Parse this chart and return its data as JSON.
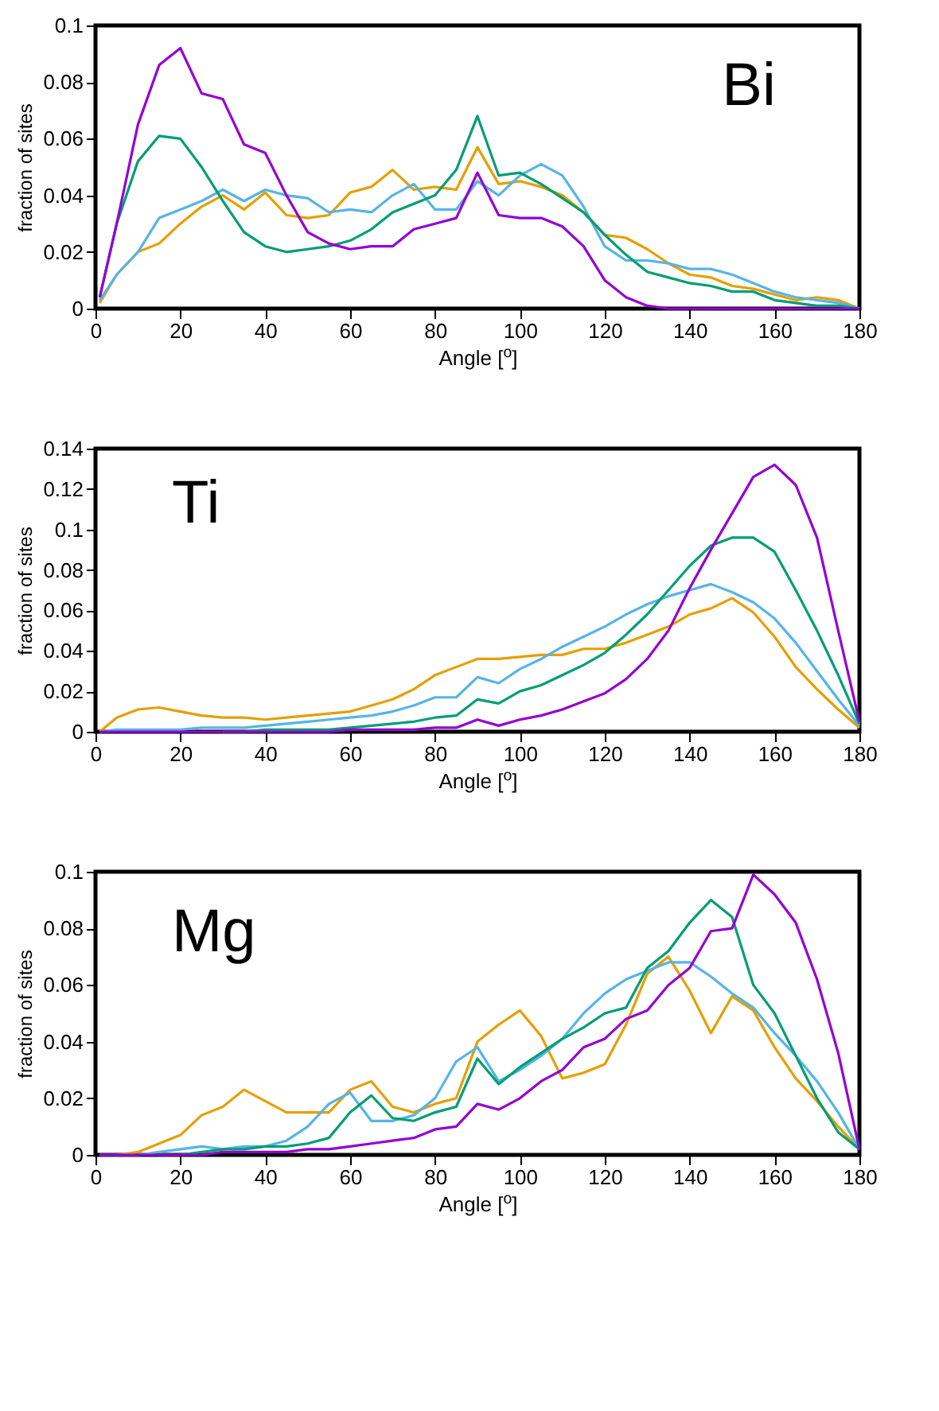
{
  "chart_data": [
    {
      "type": "line",
      "xlabel": "Angle [$^{o}$]",
      "ylabel": "fraction of sites",
      "annotations": [
        "Bi"
      ],
      "x": [
        1,
        5,
        10,
        15,
        20,
        25,
        30,
        35,
        40,
        45,
        50,
        55,
        60,
        65,
        70,
        75,
        80,
        85,
        90,
        95,
        100,
        105,
        110,
        115,
        120,
        125,
        130,
        135,
        140,
        145,
        150,
        155,
        160,
        165,
        170,
        175,
        180
      ],
      "xlim": [
        0,
        180
      ],
      "xticks": [
        0,
        20,
        40,
        60,
        80,
        100,
        120,
        140,
        160,
        180
      ],
      "ylim": [
        0,
        0.1
      ],
      "yticks": [
        0,
        0.02,
        0.04,
        0.06,
        0.08,
        0.1
      ],
      "grid": false,
      "legend": false,
      "series": [
        {
          "color": "#9400d3",
          "values": [
            0.004,
            0.03,
            0.065,
            0.086,
            0.092,
            0.076,
            0.074,
            0.058,
            0.055,
            0.04,
            0.027,
            0.023,
            0.021,
            0.022,
            0.022,
            0.028,
            0.03,
            0.032,
            0.048,
            0.033,
            0.032,
            0.032,
            0.029,
            0.022,
            0.01,
            0.004,
            0.001,
            0,
            0,
            0,
            0,
            0,
            0,
            0,
            0,
            0,
            0
          ]
        },
        {
          "color": "#009e73",
          "values": [
            0.004,
            0.03,
            0.052,
            0.061,
            0.06,
            0.05,
            0.038,
            0.027,
            0.022,
            0.02,
            0.021,
            0.022,
            0.024,
            0.028,
            0.034,
            0.037,
            0.04,
            0.049,
            0.068,
            0.047,
            0.048,
            0.044,
            0.039,
            0.034,
            0.026,
            0.019,
            0.013,
            0.011,
            0.009,
            0.008,
            0.006,
            0.006,
            0.003,
            0.002,
            0.001,
            0.001,
            0
          ]
        },
        {
          "color": "#56b4e9",
          "values": [
            0.003,
            0.012,
            0.02,
            0.032,
            0.035,
            0.038,
            0.042,
            0.038,
            0.042,
            0.04,
            0.039,
            0.034,
            0.035,
            0.034,
            0.04,
            0.044,
            0.035,
            0.035,
            0.045,
            0.04,
            0.047,
            0.051,
            0.047,
            0.036,
            0.022,
            0.017,
            0.017,
            0.016,
            0.014,
            0.014,
            0.012,
            0.009,
            0.006,
            0.004,
            0.003,
            0.002,
            0
          ]
        },
        {
          "color": "#e69f00",
          "values": [
            0.002,
            0.012,
            0.02,
            0.023,
            0.03,
            0.036,
            0.04,
            0.035,
            0.041,
            0.033,
            0.032,
            0.033,
            0.041,
            0.043,
            0.049,
            0.042,
            0.043,
            0.042,
            0.057,
            0.044,
            0.045,
            0.043,
            0.04,
            0.034,
            0.026,
            0.025,
            0.021,
            0.016,
            0.012,
            0.011,
            0.008,
            0.007,
            0.005,
            0.003,
            0.004,
            0.003,
            0
          ]
        }
      ]
    },
    {
      "type": "line",
      "xlabel": "Angle [$^{o}$]",
      "ylabel": "fraction of sites",
      "annotations": [
        "Ti"
      ],
      "x": [
        1,
        5,
        10,
        15,
        20,
        25,
        30,
        35,
        40,
        45,
        50,
        55,
        60,
        65,
        70,
        75,
        80,
        85,
        90,
        95,
        100,
        105,
        110,
        115,
        120,
        125,
        130,
        135,
        140,
        145,
        150,
        155,
        160,
        165,
        170,
        175,
        180
      ],
      "xlim": [
        0,
        180
      ],
      "xticks": [
        0,
        20,
        40,
        60,
        80,
        100,
        120,
        140,
        160,
        180
      ],
      "ylim": [
        0,
        0.14
      ],
      "yticks": [
        0,
        0.02,
        0.04,
        0.06,
        0.08,
        0.1,
        0.12,
        0.14
      ],
      "grid": false,
      "legend": false,
      "series": [
        {
          "color": "#9400d3",
          "values": [
            0,
            0,
            0,
            0,
            0,
            0,
            0,
            0,
            0,
            0,
            0,
            0,
            0.001,
            0.001,
            0.001,
            0.001,
            0.002,
            0.002,
            0.006,
            0.003,
            0.006,
            0.008,
            0.011,
            0.015,
            0.019,
            0.026,
            0.036,
            0.05,
            0.071,
            0.09,
            0.108,
            0.126,
            0.132,
            0.122,
            0.096,
            0.05,
            0.005
          ]
        },
        {
          "color": "#009e73",
          "values": [
            null,
            null,
            null,
            null,
            null,
            null,
            0,
            0,
            0.001,
            0.001,
            0.001,
            0.001,
            0.002,
            0.003,
            0.004,
            0.005,
            0.007,
            0.008,
            0.016,
            0.014,
            0.02,
            0.023,
            0.028,
            0.033,
            0.039,
            0.048,
            0.058,
            0.07,
            0.082,
            0.092,
            0.096,
            0.096,
            0.089,
            0.07,
            0.05,
            0.028,
            0.004
          ]
        },
        {
          "color": "#56b4e9",
          "values": [
            0,
            0.001,
            0.001,
            0.001,
            0.001,
            0.002,
            0.002,
            0.002,
            0.003,
            0.004,
            0.005,
            0.006,
            0.007,
            0.008,
            0.01,
            0.013,
            0.017,
            0.017,
            0.027,
            0.024,
            0.031,
            0.036,
            0.042,
            0.047,
            0.052,
            0.058,
            0.063,
            0.067,
            0.07,
            0.073,
            0.069,
            0.064,
            0.056,
            0.044,
            0.03,
            0.016,
            0.003
          ]
        },
        {
          "color": "#e69f00",
          "values": [
            0,
            0.007,
            0.011,
            0.012,
            0.01,
            0.008,
            0.007,
            0.007,
            0.006,
            0.007,
            0.008,
            0.009,
            0.01,
            0.013,
            0.016,
            0.021,
            0.028,
            0.032,
            0.036,
            0.036,
            0.037,
            0.038,
            0.038,
            0.041,
            0.041,
            0.044,
            0.048,
            0.052,
            0.058,
            0.061,
            0.066,
            0.059,
            0.047,
            0.032,
            0.021,
            0.011,
            0.002
          ]
        }
      ]
    },
    {
      "type": "line",
      "xlabel": "Angle [$^{o}$]",
      "ylabel": "fraction of sites",
      "annotations": [
        "Mg"
      ],
      "x": [
        1,
        5,
        10,
        15,
        20,
        25,
        30,
        35,
        40,
        45,
        50,
        55,
        60,
        65,
        70,
        75,
        80,
        85,
        90,
        95,
        100,
        105,
        110,
        115,
        120,
        125,
        130,
        135,
        140,
        145,
        150,
        155,
        160,
        165,
        170,
        175,
        180
      ],
      "xlim": [
        0,
        180
      ],
      "xticks": [
        0,
        20,
        40,
        60,
        80,
        100,
        120,
        140,
        160,
        180
      ],
      "ylim": [
        0,
        0.1
      ],
      "yticks": [
        0,
        0.02,
        0.04,
        0.06,
        0.08,
        0.1
      ],
      "grid": false,
      "legend": false,
      "series": [
        {
          "color": "#9400d3",
          "values": [
            0,
            0,
            0,
            0,
            0,
            0,
            0.001,
            0.001,
            0.001,
            0.001,
            0.002,
            0.002,
            0.003,
            0.004,
            0.005,
            0.006,
            0.009,
            0.01,
            0.018,
            0.016,
            0.02,
            0.026,
            0.03,
            0.038,
            0.041,
            0.048,
            0.051,
            0.06,
            0.066,
            0.079,
            0.08,
            0.099,
            0.092,
            0.082,
            0.062,
            0.036,
            0.002
          ]
        },
        {
          "color": "#009e73",
          "values": [
            null,
            null,
            null,
            0,
            0,
            0.001,
            0.002,
            0.002,
            0.003,
            0.003,
            0.004,
            0.006,
            0.015,
            0.021,
            0.013,
            0.012,
            0.015,
            0.017,
            0.034,
            0.025,
            0.031,
            0.036,
            0.041,
            0.045,
            0.05,
            0.052,
            0.066,
            0.072,
            0.082,
            0.09,
            0.084,
            0.06,
            0.05,
            0.035,
            0.02,
            0.008,
            0.002
          ]
        },
        {
          "color": "#56b4e9",
          "values": [
            0,
            0,
            0,
            0.001,
            0.002,
            0.003,
            0.002,
            0.003,
            0.003,
            0.005,
            0.01,
            0.018,
            0.022,
            0.012,
            0.012,
            0.014,
            0.02,
            0.033,
            0.038,
            0.026,
            0.03,
            0.035,
            0.041,
            0.05,
            0.057,
            0.062,
            0.065,
            0.068,
            0.068,
            0.063,
            0.057,
            0.052,
            0.043,
            0.035,
            0.026,
            0.015,
            0.002
          ]
        },
        {
          "color": "#e69f00",
          "values": [
            null,
            0,
            0.001,
            0.004,
            0.007,
            0.014,
            0.017,
            0.023,
            0.019,
            0.015,
            0.015,
            0.015,
            0.023,
            0.026,
            0.017,
            0.015,
            0.018,
            0.02,
            0.04,
            0.046,
            0.051,
            0.042,
            0.027,
            0.029,
            0.032,
            0.046,
            0.064,
            0.07,
            0.058,
            0.043,
            0.056,
            0.051,
            0.038,
            0.027,
            0.019,
            0.01,
            0.002
          ]
        }
      ]
    }
  ]
}
